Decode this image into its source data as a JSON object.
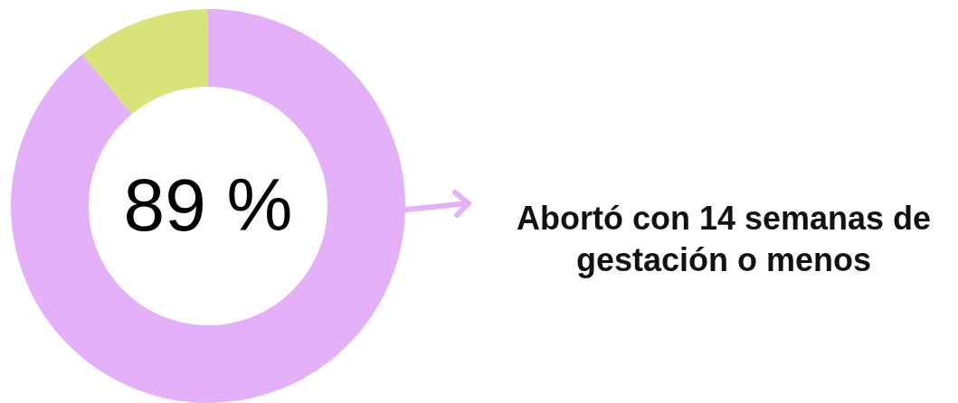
{
  "chart_data": {
    "type": "donut",
    "categories": [
      "Abortó con 14 semanas de gestación o menos",
      null
    ],
    "values": [
      89,
      11
    ],
    "colors": [
      "#e4b0f8",
      "#d8e47a"
    ],
    "value_labels": [
      "89 %",
      null
    ],
    "legend": "right"
  }
}
